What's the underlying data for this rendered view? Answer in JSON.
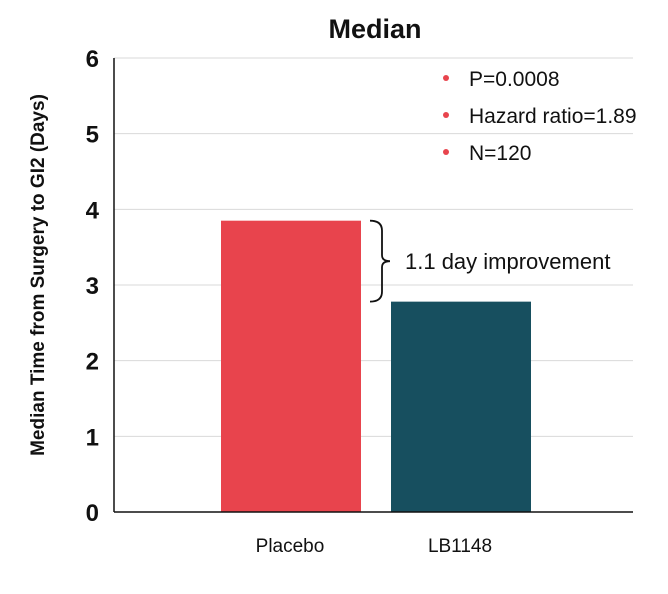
{
  "chart_data": {
    "type": "bar",
    "title": "Median",
    "xlabel": "",
    "ylabel": "Median Time from Surgery to GI2 (Days)",
    "categories": [
      "Placebo",
      "LB1148"
    ],
    "values": [
      3.85,
      2.78
    ],
    "colors": [
      "#e8444d",
      "#174f5f"
    ],
    "ylim": [
      0,
      6
    ],
    "yticks": [
      "0",
      "1",
      "2",
      "3",
      "4",
      "5",
      "6"
    ],
    "grid": true,
    "legend_placement": "top-right",
    "legend_items": [
      "P=0.0008",
      "Hazard ratio=1.89",
      "N=120"
    ],
    "legend_bullet_color": "#e8444d",
    "annotation": {
      "text": "1.1 day improvement",
      "from_value": 3.85,
      "to_value": 2.78
    }
  }
}
